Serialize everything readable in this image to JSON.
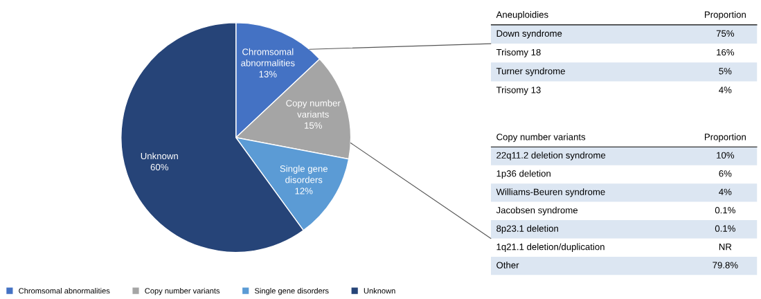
{
  "chart_data": [
    {
      "type": "pie",
      "categories": [
        "Chromsomal abnormalities",
        "Copy number variants",
        "Single gene disorders",
        "Unknown"
      ],
      "values": [
        13,
        15,
        12,
        60
      ],
      "colors": [
        "#4472c4",
        "#a5a5a5",
        "#5b9bd5",
        "#264478"
      ],
      "value_labels": [
        "13%",
        "15%",
        "12%",
        "60%"
      ],
      "legend": "bottom left"
    },
    {
      "type": "other",
      "title": "Aneuploidies",
      "annotations": [
        "Proportion"
      ],
      "categories": [
        "Down syndrome",
        "Trisomy 18",
        "Turner syndrome",
        "Trisomy 13"
      ],
      "value_labels": [
        "75%",
        "16%",
        "5%",
        "4%"
      ]
    },
    {
      "type": "other",
      "title": "Copy number variants",
      "annotations": [
        "Proportion"
      ],
      "categories": [
        "22q11.2 deletion syndrome",
        "1p36 deletion",
        "Williams-Beuren syndrome",
        "Jacobsen syndrome",
        "8p23.1 deletion",
        "1q21.1 deletion/duplication",
        "Other"
      ],
      "value_labels": [
        "10%",
        "6%",
        "4%",
        "0.1%",
        "0.1%",
        "NR",
        "79.8%"
      ]
    }
  ]
}
